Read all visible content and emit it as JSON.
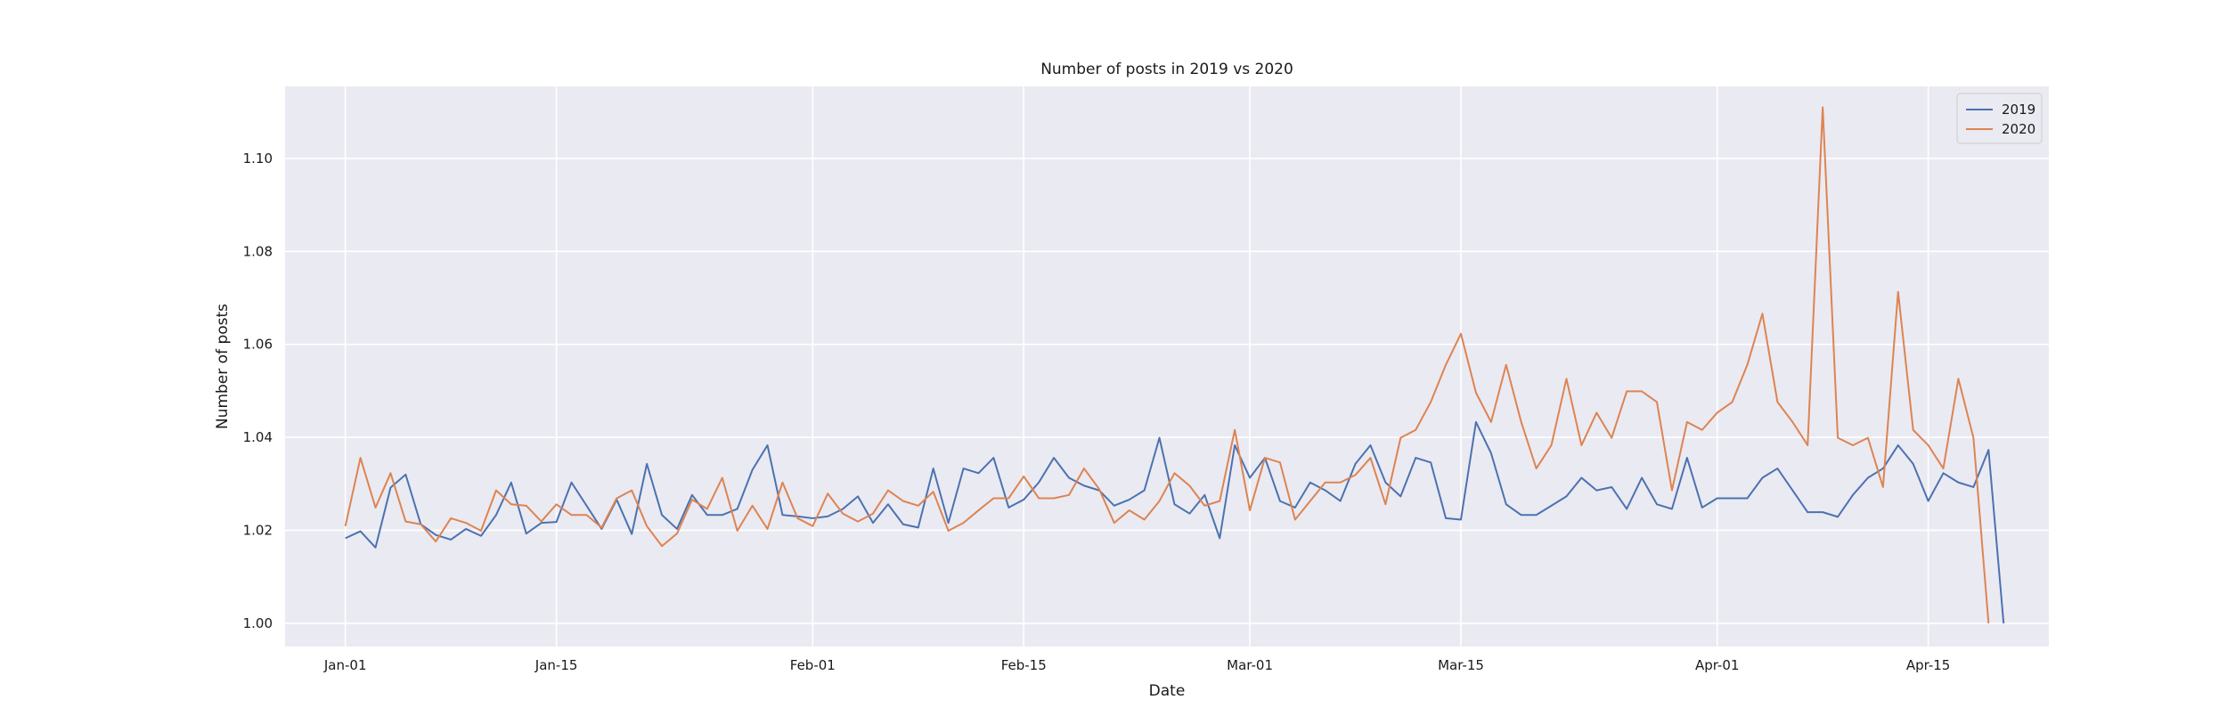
{
  "chart_data": {
    "type": "line",
    "title": "Number of posts in 2019 vs 2020",
    "xlabel": "Date",
    "ylabel": "Number of posts",
    "x_tick_labels": [
      "Jan-01",
      "Jan-15",
      "Feb-01",
      "Feb-15",
      "Mar-01",
      "Mar-15",
      "Apr-01",
      "Apr-15"
    ],
    "x_tick_days": [
      0,
      14,
      31,
      45,
      60,
      74,
      91,
      105
    ],
    "y_ticks": [
      1.0,
      1.02,
      1.04,
      1.06,
      1.08,
      1.1
    ],
    "y_tick_labels": [
      "1.00",
      "1.02",
      "1.04",
      "1.06",
      "1.08",
      "1.10"
    ],
    "xlim": [
      "Dec-27",
      "May-05"
    ],
    "ylim": [
      0.995,
      1.1155
    ],
    "grid": true,
    "legend_position": "top-right",
    "series": [
      {
        "name": "2019",
        "color": "#4c72b0",
        "values": [
          1.0183,
          1.0198,
          1.0163,
          1.0292,
          1.032,
          1.0213,
          1.019,
          1.018,
          1.0203,
          1.0188,
          1.0233,
          1.0303,
          1.0193,
          1.0216,
          1.0218,
          1.0303,
          1.0253,
          1.0203,
          1.0266,
          1.0192,
          1.0343,
          1.0233,
          1.0203,
          1.0276,
          1.0233,
          1.0233,
          1.0246,
          1.033,
          1.0383,
          1.0233,
          1.023,
          1.0226,
          1.023,
          1.0246,
          1.0273,
          1.0216,
          1.0256,
          1.0213,
          1.0206,
          1.0333,
          1.0216,
          1.0333,
          1.0323,
          1.0356,
          1.0249,
          1.0266,
          1.0303,
          1.0356,
          1.0313,
          1.0296,
          1.0286,
          1.0253,
          1.0266,
          1.0286,
          1.0399,
          1.0256,
          1.0236,
          1.0276,
          1.0183,
          1.0383,
          1.0313,
          1.0356,
          1.0263,
          1.0249,
          1.0303,
          1.0286,
          1.0263,
          1.0343,
          1.0383,
          1.0303,
          1.0273,
          1.0356,
          1.0346,
          1.0226,
          1.0223,
          1.0433,
          1.0366,
          1.0256,
          1.0233,
          1.0233,
          1.0253,
          1.0273,
          1.0313,
          1.0286,
          1.0293,
          1.0246,
          1.0313,
          1.0256,
          1.0246,
          1.0356,
          1.0249,
          1.0269,
          1.0269,
          1.0269,
          1.0313,
          1.0333,
          1.0286,
          1.0239,
          1.0239,
          1.0229,
          1.0276,
          1.0313,
          1.0333,
          1.0383,
          1.0343,
          1.0263,
          1.0323,
          1.0303,
          1.0293,
          1.0373,
          1.0
        ]
      },
      {
        "name": "2020",
        "color": "#dd8452",
        "values": [
          1.0209,
          1.0356,
          1.0249,
          1.0323,
          1.0219,
          1.0213,
          1.0176,
          1.0226,
          1.0216,
          1.0199,
          1.0286,
          1.0256,
          1.0253,
          1.0219,
          1.0256,
          1.0233,
          1.0233,
          1.0206,
          1.0269,
          1.0286,
          1.0209,
          1.0166,
          1.0193,
          1.0266,
          1.0246,
          1.0313,
          1.0199,
          1.0253,
          1.0203,
          1.0303,
          1.0226,
          1.0209,
          1.0279,
          1.0236,
          1.0219,
          1.0236,
          1.0286,
          1.0263,
          1.0253,
          1.0283,
          1.0199,
          1.0216,
          1.0243,
          1.0269,
          1.0269,
          1.0316,
          1.0269,
          1.0269,
          1.0276,
          1.0333,
          1.0289,
          1.0216,
          1.0243,
          1.0223,
          1.0263,
          1.0323,
          1.0296,
          1.0253,
          1.0263,
          1.0416,
          1.0243,
          1.0356,
          1.0346,
          1.0223,
          1.0263,
          1.0303,
          1.0303,
          1.0319,
          1.0356,
          1.0256,
          1.0399,
          1.0416,
          1.0476,
          1.0556,
          1.0623,
          1.0496,
          1.0433,
          1.0556,
          1.0433,
          1.0333,
          1.0383,
          1.0526,
          1.0383,
          1.0453,
          1.0399,
          1.0499,
          1.0499,
          1.0476,
          1.0286,
          1.0433,
          1.0416,
          1.0453,
          1.0476,
          1.0556,
          1.0666,
          1.0476,
          1.0433,
          1.0383,
          1.111,
          1.0399,
          1.0383,
          1.0399,
          1.0293,
          1.0713,
          1.0416,
          1.0383,
          1.0333,
          1.0526,
          1.0399,
          1.0
        ]
      }
    ]
  }
}
